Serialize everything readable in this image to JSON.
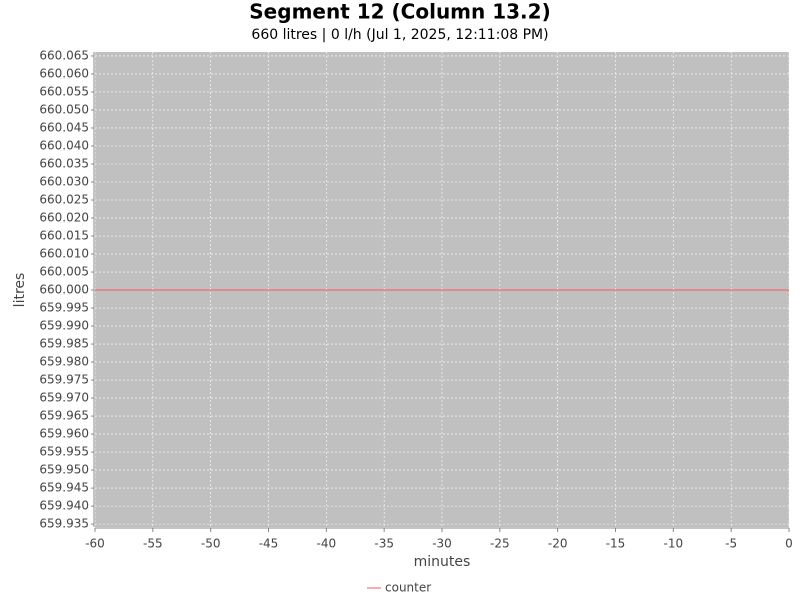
{
  "chart_data": {
    "type": "line",
    "title": "Segment 12 (Column 13.2)",
    "subtitle": "660 litres | 0 l/h (Jul 1, 2025, 12:11:08 PM)",
    "x_label": "minutes",
    "y_label": "litres",
    "x": [
      -60,
      0
    ],
    "series": [
      {
        "name": "counter",
        "color": "#ff5555",
        "values": [
          660,
          660
        ]
      }
    ],
    "xlim": [
      -60,
      0
    ],
    "xticks": [
      -60,
      -55,
      -50,
      -45,
      -40,
      -35,
      -30,
      -25,
      -20,
      -15,
      -10,
      -5,
      0
    ],
    "ylim": [
      659.9342,
      660.0661
    ],
    "yticks": [
      659.935,
      {
        "value": 659.94,
        "label": "659.940"
      },
      659.945,
      {
        "value": 659.95,
        "label": "659.950"
      },
      659.955,
      {
        "value": 659.96,
        "label": "659.960"
      },
      659.965,
      {
        "value": 659.97,
        "label": "659.970"
      },
      659.975,
      {
        "value": 659.98,
        "label": "659.980"
      },
      659.985,
      {
        "value": 659.99,
        "label": "659.990"
      },
      659.995,
      {
        "value": 660,
        "label": "660.000"
      },
      660.005,
      {
        "value": 660.01,
        "label": "660.010"
      },
      660.015,
      {
        "value": 660.02,
        "label": "660.020"
      },
      660.025,
      {
        "value": 660.03,
        "label": "660.030"
      },
      660.035,
      {
        "value": 660.04,
        "label": "660.040"
      },
      660.045,
      {
        "value": 660.05,
        "label": "660.050"
      },
      660.055,
      {
        "value": 660.06,
        "label": "660.060"
      },
      660.065
    ],
    "grid": true,
    "plot_background": "#c0c0c0",
    "legend": "bottom"
  }
}
